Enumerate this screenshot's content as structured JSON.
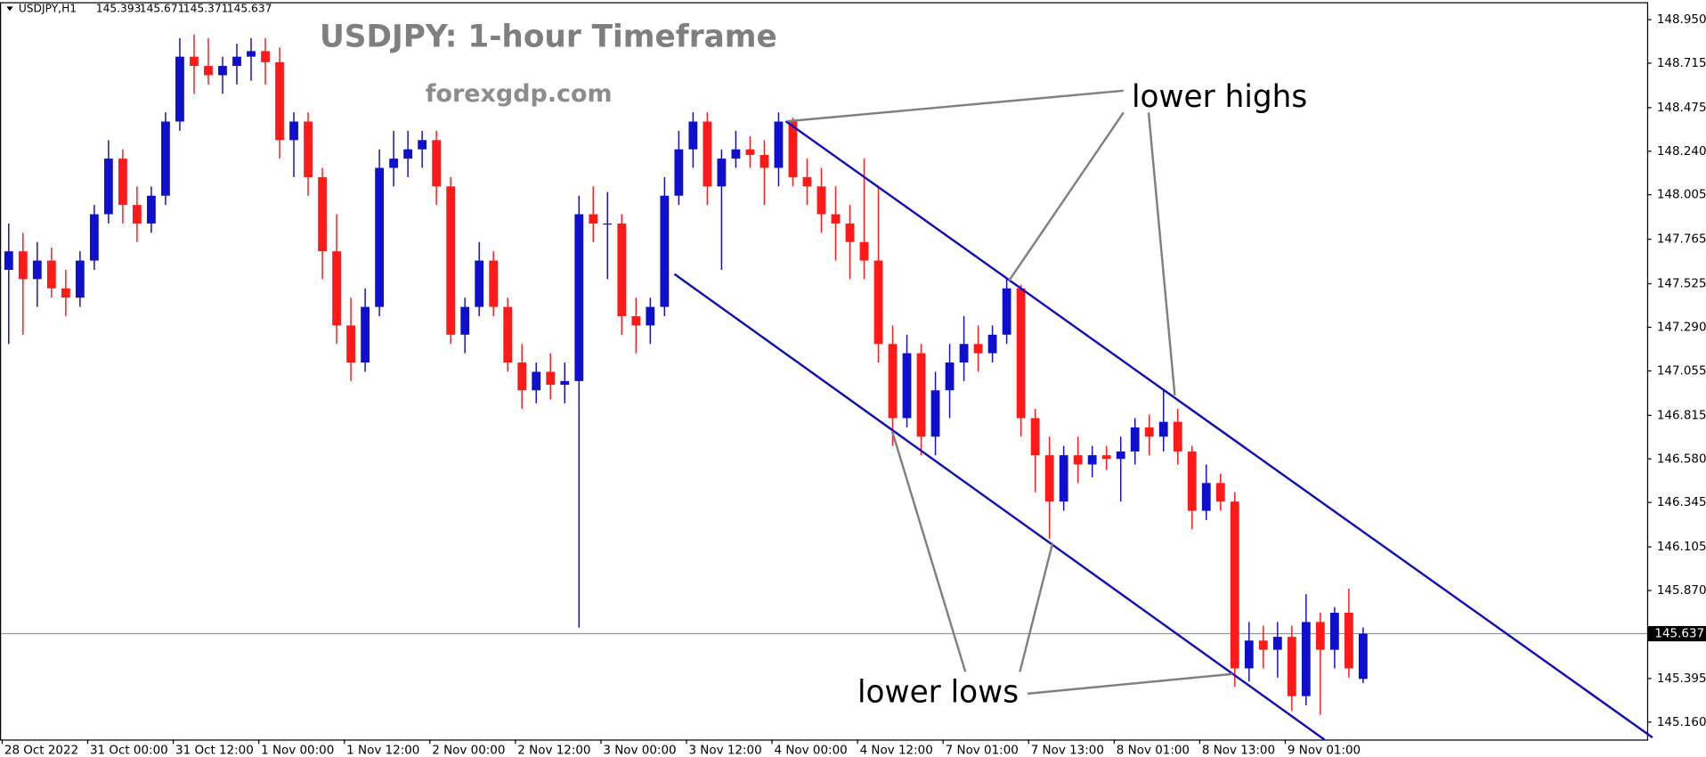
{
  "chart_data": {
    "type": "candlestick",
    "title": "USDJPY: 1-hour Timeframe",
    "subtitle": "forexgdp.com",
    "symbol": "USDJPY,H1",
    "annotations": [
      "lower highs",
      "lower lows"
    ],
    "up_color": "#1010cc",
    "down_color": "#ff1a1a",
    "trendline_color": "#1010b8",
    "categories": [
      "28 Oct 2022",
      null,
      null,
      null,
      null,
      null,
      "31 Oct 00:00",
      null,
      null,
      null,
      null,
      null,
      "31 Oct 12:00",
      null,
      null,
      null,
      null,
      null,
      "1 Nov 00:00",
      null,
      null,
      null,
      null,
      null,
      "1 Nov 12:00",
      null,
      null,
      null,
      null,
      null,
      "2 Nov 00:00",
      null,
      null,
      null,
      null,
      null,
      "2 Nov 12:00",
      null,
      null,
      null,
      null,
      null,
      "3 Nov 00:00",
      null,
      null,
      null,
      null,
      null,
      "3 Nov 12:00",
      null,
      null,
      null,
      null,
      null,
      "4 Nov 00:00",
      null,
      null,
      null,
      null,
      null,
      "4 Nov 12:00",
      null,
      null,
      null,
      null,
      null,
      "7 Nov 01:00",
      null,
      null,
      null,
      null,
      null,
      "7 Nov 13:00",
      null,
      null,
      null,
      null,
      null,
      "8 Nov 01:00",
      null,
      null,
      null,
      null,
      null,
      "8 Nov 13:00",
      null,
      null,
      null,
      null,
      null,
      "9 Nov 01:00",
      null,
      null,
      null,
      null,
      null
    ],
    "ohlc": [
      [
        147.6,
        147.85,
        147.2,
        147.7
      ],
      [
        147.7,
        147.8,
        147.25,
        147.55
      ],
      [
        147.55,
        147.75,
        147.4,
        147.65
      ],
      [
        147.65,
        147.72,
        147.45,
        147.5
      ],
      [
        147.5,
        147.6,
        147.35,
        147.45
      ],
      [
        147.45,
        147.7,
        147.4,
        147.65
      ],
      [
        147.65,
        147.95,
        147.6,
        147.9
      ],
      [
        147.9,
        148.3,
        147.85,
        148.2
      ],
      [
        148.2,
        148.25,
        147.85,
        147.95
      ],
      [
        147.95,
        148.05,
        147.75,
        147.85
      ],
      [
        147.85,
        148.05,
        147.8,
        148.0
      ],
      [
        148.0,
        148.45,
        147.95,
        148.4
      ],
      [
        148.4,
        148.85,
        148.35,
        148.75
      ],
      [
        148.75,
        148.87,
        148.55,
        148.7
      ],
      [
        148.7,
        148.85,
        148.6,
        148.65
      ],
      [
        148.65,
        148.75,
        148.55,
        148.7
      ],
      [
        148.7,
        148.82,
        148.6,
        148.75
      ],
      [
        148.75,
        148.85,
        148.62,
        148.78
      ],
      [
        148.78,
        148.85,
        148.6,
        148.72
      ],
      [
        148.72,
        148.8,
        148.2,
        148.3
      ],
      [
        148.3,
        148.45,
        148.1,
        148.4
      ],
      [
        148.4,
        148.45,
        148.0,
        148.1
      ],
      [
        148.1,
        148.15,
        147.55,
        147.7
      ],
      [
        147.7,
        147.9,
        147.2,
        147.3
      ],
      [
        147.3,
        147.45,
        147.0,
        147.1
      ],
      [
        147.1,
        147.5,
        147.05,
        147.4
      ],
      [
        147.4,
        148.25,
        147.35,
        148.15
      ],
      [
        148.15,
        148.35,
        148.05,
        148.2
      ],
      [
        148.2,
        148.35,
        148.1,
        148.25
      ],
      [
        148.25,
        148.35,
        148.15,
        148.3
      ],
      [
        148.3,
        148.35,
        147.95,
        148.05
      ],
      [
        148.05,
        148.1,
        147.2,
        147.25
      ],
      [
        147.25,
        147.45,
        147.15,
        147.4
      ],
      [
        147.4,
        147.75,
        147.35,
        147.65
      ],
      [
        147.65,
        147.7,
        147.35,
        147.4
      ],
      [
        147.4,
        147.45,
        147.05,
        147.1
      ],
      [
        147.1,
        147.2,
        146.85,
        146.95
      ],
      [
        146.95,
        147.1,
        146.88,
        147.05
      ],
      [
        147.05,
        147.15,
        146.9,
        146.98
      ],
      [
        146.98,
        147.1,
        146.88,
        147.0
      ],
      [
        147.0,
        148.0,
        145.67,
        147.9
      ],
      [
        147.9,
        148.05,
        147.75,
        147.85
      ],
      [
        147.85,
        148.02,
        147.55,
        147.85
      ],
      [
        147.85,
        147.9,
        147.25,
        147.35
      ],
      [
        147.35,
        147.45,
        147.15,
        147.3
      ],
      [
        147.3,
        147.45,
        147.2,
        147.4
      ],
      [
        147.4,
        148.1,
        147.35,
        148.0
      ],
      [
        148.0,
        148.35,
        147.95,
        148.25
      ],
      [
        148.25,
        148.45,
        148.15,
        148.4
      ],
      [
        148.4,
        148.45,
        147.95,
        148.05
      ],
      [
        148.05,
        148.25,
        147.6,
        148.2
      ],
      [
        148.2,
        148.35,
        148.15,
        148.25
      ],
      [
        148.25,
        148.32,
        148.15,
        148.22
      ],
      [
        148.22,
        148.3,
        147.95,
        148.15
      ],
      [
        148.15,
        148.45,
        148.05,
        148.4
      ],
      [
        148.4,
        148.42,
        148.05,
        148.1
      ],
      [
        148.1,
        148.2,
        147.95,
        148.05
      ],
      [
        148.05,
        148.15,
        147.8,
        147.9
      ],
      [
        147.9,
        148.05,
        147.65,
        147.85
      ],
      [
        147.85,
        147.95,
        147.55,
        147.75
      ],
      [
        147.75,
        148.2,
        147.55,
        147.65
      ],
      [
        147.65,
        148.05,
        147.1,
        147.2
      ],
      [
        147.2,
        147.3,
        146.65,
        146.8
      ],
      [
        146.8,
        147.25,
        146.75,
        147.15
      ],
      [
        147.15,
        147.2,
        146.6,
        146.7
      ],
      [
        146.7,
        147.05,
        146.6,
        146.95
      ],
      [
        146.95,
        147.2,
        146.8,
        147.1
      ],
      [
        147.1,
        147.35,
        147.0,
        147.2
      ],
      [
        147.2,
        147.3,
        147.05,
        147.15
      ],
      [
        147.15,
        147.3,
        147.1,
        147.25
      ],
      [
        147.25,
        147.55,
        147.2,
        147.5
      ],
      [
        147.5,
        147.52,
        146.7,
        146.8
      ],
      [
        146.8,
        146.85,
        146.4,
        146.6
      ],
      [
        146.6,
        146.7,
        146.15,
        146.35
      ],
      [
        146.35,
        146.65,
        146.3,
        146.6
      ],
      [
        146.6,
        146.7,
        146.45,
        146.55
      ],
      [
        146.55,
        146.65,
        146.48,
        146.6
      ],
      [
        146.6,
        146.65,
        146.52,
        146.58
      ],
      [
        146.58,
        146.7,
        146.35,
        146.62
      ],
      [
        146.62,
        146.8,
        146.55,
        146.75
      ],
      [
        146.75,
        146.82,
        146.6,
        146.7
      ],
      [
        146.7,
        146.95,
        146.62,
        146.78
      ],
      [
        146.78,
        146.85,
        146.55,
        146.62
      ],
      [
        146.62,
        146.65,
        146.2,
        146.3
      ],
      [
        146.3,
        146.55,
        146.25,
        146.45
      ],
      [
        146.45,
        146.5,
        146.3,
        146.35
      ],
      [
        146.35,
        146.4,
        145.35,
        145.45
      ],
      [
        145.45,
        145.7,
        145.38,
        145.6
      ],
      [
        145.6,
        145.68,
        145.45,
        145.55
      ],
      [
        145.55,
        145.7,
        145.4,
        145.62
      ],
      [
        145.62,
        145.68,
        145.22,
        145.3
      ],
      [
        145.3,
        145.85,
        145.25,
        145.7
      ],
      [
        145.7,
        145.75,
        145.2,
        145.55
      ],
      [
        145.55,
        145.78,
        145.45,
        145.75
      ],
      [
        145.75,
        145.88,
        145.4,
        145.45
      ],
      [
        145.393,
        145.671,
        145.371,
        145.637
      ]
    ],
    "trendlines": [
      {
        "x": [
          54.5,
          115.3
        ],
        "y": [
          148.402,
          145.077
        ]
      },
      {
        "x": [
          46.7,
          92.3
        ],
        "y": [
          147.577,
          145.065
        ]
      }
    ],
    "ylim": [
      145.066,
      149.044
    ],
    "yticks": [
      {
        "value": 148.95,
        "label": "148.950"
      },
      148.715,
      148.475,
      {
        "value": 148.24,
        "label": "148.240"
      },
      148.005,
      147.765,
      147.525,
      {
        "value": 147.29,
        "label": "147.290"
      },
      147.055,
      146.815,
      {
        "value": 146.58,
        "label": "146.580"
      },
      146.345,
      146.105,
      {
        "value": 145.87,
        "label": "145.870"
      },
      145.395,
      {
        "value": 145.16,
        "label": "145.160"
      }
    ]
  }
}
